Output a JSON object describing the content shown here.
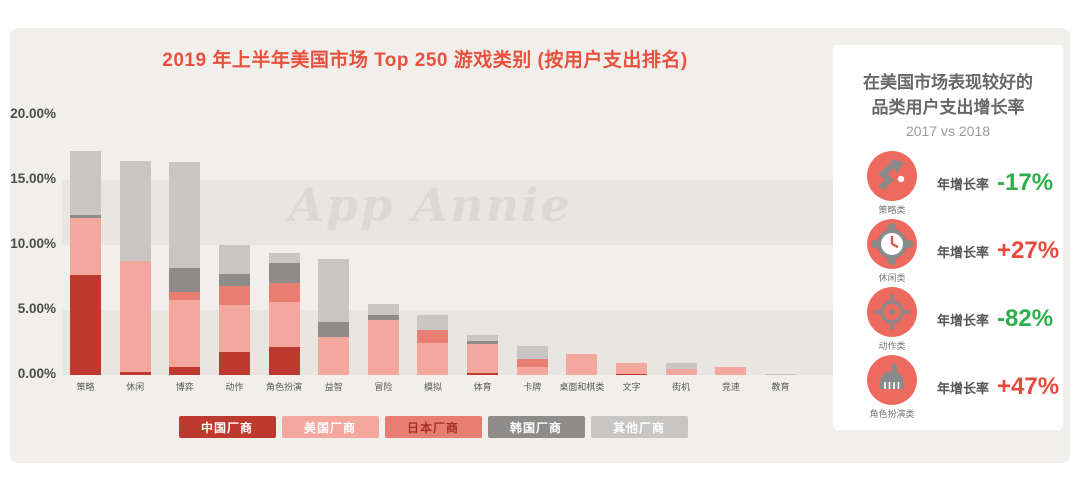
{
  "watermark": "App Annie",
  "colors": {
    "title_accent": "#e8513d",
    "panel_bg": "#f1efec",
    "band_bg": "#e9e6e2",
    "positive_red": "#e8473c",
    "negative_green": "#2eaf4e",
    "icon_circle": "#ed6a5f"
  },
  "chart_data": {
    "type": "bar",
    "stacked": true,
    "title": "2019 年上半年美国市场 Top 250 游戏类别 (按用户支出排名)",
    "xlabel": "",
    "ylabel": "",
    "ylim": [
      0,
      20
    ],
    "yticks": [
      "0.00%",
      "5.00%",
      "10.00%",
      "15.00%",
      "20.00%"
    ],
    "grid": "alternating-bands",
    "legend_position": "bottom",
    "categories": [
      "策略",
      "休闲",
      "博弈",
      "动作",
      "角色扮演",
      "益智",
      "冒险",
      "模拟",
      "体育",
      "卡牌",
      "桌面和棋类",
      "文字",
      "街机",
      "竞速",
      "教育"
    ],
    "series": [
      {
        "name": "中国厂商",
        "color": "#bf3a2e",
        "legend_text_color": "#ffffff",
        "values": [
          7.7,
          0.2,
          0.65,
          1.8,
          2.15,
          0,
          0,
          0,
          0.15,
          0,
          0,
          0.05,
          0,
          0,
          0
        ]
      },
      {
        "name": "美国厂商",
        "color": "#f4a89d",
        "legend_text_color": "#ffffff",
        "values": [
          4.4,
          8.6,
          5.1,
          3.55,
          3.5,
          2.95,
          4.2,
          2.5,
          2.25,
          0.6,
          1.6,
          0.85,
          0.5,
          0.6,
          0
        ]
      },
      {
        "name": "日本厂商",
        "color": "#e87e71",
        "legend_text_color": "#a63127",
        "values": [
          0,
          0,
          0.6,
          1.5,
          1.45,
          0,
          0,
          1.0,
          0,
          0.65,
          0,
          0,
          0,
          0,
          0
        ]
      },
      {
        "name": "韩国厂商",
        "color": "#8d8c8b",
        "legend_text_color": "#ffffff",
        "values": [
          0.2,
          0,
          1.9,
          0.95,
          1.5,
          1.1,
          0.4,
          0,
          0.25,
          0,
          0,
          0,
          0,
          0,
          0
        ]
      },
      {
        "name": "其他厂商",
        "color": "#c8c6c4",
        "legend_text_color": "#ffffff",
        "values": [
          4.9,
          7.65,
          8.15,
          2.2,
          0.75,
          4.9,
          0.9,
          1.1,
          0.4,
          1.0,
          0,
          0,
          0.4,
          0.05,
          0.1
        ]
      }
    ]
  },
  "sidebar": {
    "title_line1": "在美国市场表现较好的",
    "title_line2": "品类用户支出增长率",
    "subtitle": "2017 vs 2018",
    "growth_label": "年增长率",
    "items": [
      {
        "category": "策略类",
        "icon": "strategy-zigzag-arrow-icon",
        "value": "-17%",
        "value_color": "#2eaf4e"
      },
      {
        "category": "休闲类",
        "icon": "casual-clock-icon",
        "value": "+27%",
        "value_color": "#e8473c"
      },
      {
        "category": "动作类",
        "icon": "action-crosshair-icon",
        "value": "-82%",
        "value_color": "#2eaf4e"
      },
      {
        "category": "角色扮演类",
        "icon": "rpg-helmet-icon",
        "value": "+47%",
        "value_color": "#e8473c"
      }
    ]
  }
}
